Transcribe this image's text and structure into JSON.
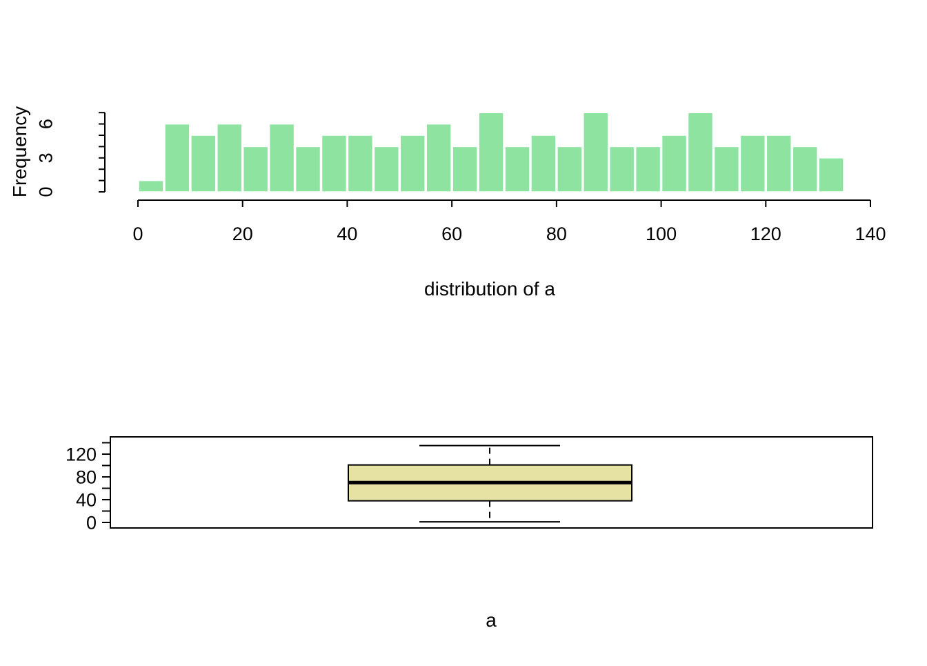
{
  "figure": {
    "background": "#ffffff",
    "foreground": "#000000"
  },
  "chart_data": [
    {
      "type": "bar",
      "subtype": "histogram",
      "title": "",
      "xlabel": "distribution of a",
      "ylabel": "Frequency",
      "bar_color": "#8fe3a1",
      "bar_border_color": "#ffffff",
      "bin_start": 0,
      "bin_width": 5,
      "categories": [
        "0-5",
        "5-10",
        "10-15",
        "15-20",
        "20-25",
        "25-30",
        "30-35",
        "35-40",
        "40-45",
        "45-50",
        "50-55",
        "55-60",
        "60-65",
        "65-70",
        "70-75",
        "75-80",
        "80-85",
        "85-90",
        "90-95",
        "95-100",
        "100-105",
        "105-110",
        "110-115",
        "115-120",
        "120-125",
        "125-130",
        "130-135"
      ],
      "values": [
        1,
        6,
        5,
        6,
        4,
        6,
        4,
        5,
        5,
        4,
        5,
        6,
        4,
        7,
        4,
        5,
        4,
        7,
        4,
        4,
        5,
        7,
        4,
        5,
        5,
        4,
        3
      ],
      "xlim": [
        0,
        140
      ],
      "ylim": [
        0,
        7
      ],
      "x_ticks": [
        0,
        20,
        40,
        60,
        80,
        100,
        120,
        140
      ],
      "y_ticks": [
        0,
        1,
        2,
        3,
        4,
        5,
        6,
        7
      ],
      "y_tick_labels": [
        0,
        3,
        6
      ],
      "grid": "off",
      "legend": "none"
    },
    {
      "type": "boxplot",
      "orientation": "vertical",
      "title": "",
      "xlabel": "a",
      "ylabel": "",
      "box_fill": "#e6e2a3",
      "line_color": "#000000",
      "whisker_style": "dashed",
      "stats": {
        "min": 1,
        "q1": 38,
        "median": 70,
        "q3": 101,
        "max": 135
      },
      "ylim": [
        -5,
        141
      ],
      "y_ticks": [
        0,
        20,
        40,
        60,
        80,
        100,
        120,
        140
      ],
      "y_tick_labels": [
        0,
        40,
        80,
        120
      ],
      "grid": "off",
      "legend": "none"
    }
  ]
}
